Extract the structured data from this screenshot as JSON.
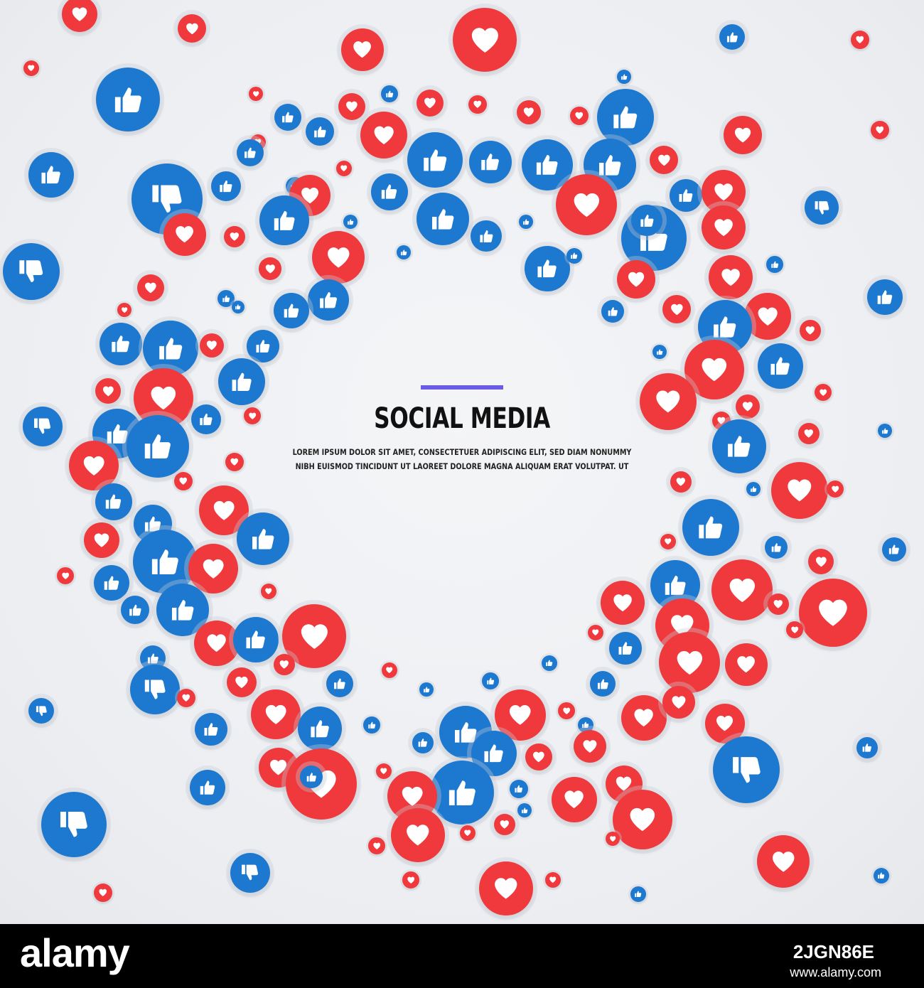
{
  "poster": {
    "title": "SOCIAL MEDIA",
    "subtitle_line1": "LOREM IPSUM DOLOR SIT AMET, CONSECTETUER ADIPISCING ELIT, SED DIAM NONUMMY",
    "subtitle_line2": "NIBH EUISMOD TINCIDUNT UT LAOREET DOLORE MAGNA ALIQUAM ERAT VOLUTPAT. UT"
  },
  "colors": {
    "heart_bubble": "#f0393c",
    "like_bubble": "#1d78d0",
    "accent_bar": "#6a5ce4",
    "title_text": "#111111",
    "icon_glyph": "#ffffff"
  },
  "icons": {
    "heart": "heart-icon",
    "like": "thumbs-up-icon",
    "dislike": "thumbs-down-icon"
  },
  "footer": {
    "logo": "alamy",
    "image_id": "2JGN86E",
    "url": "www.alamy.com"
  }
}
